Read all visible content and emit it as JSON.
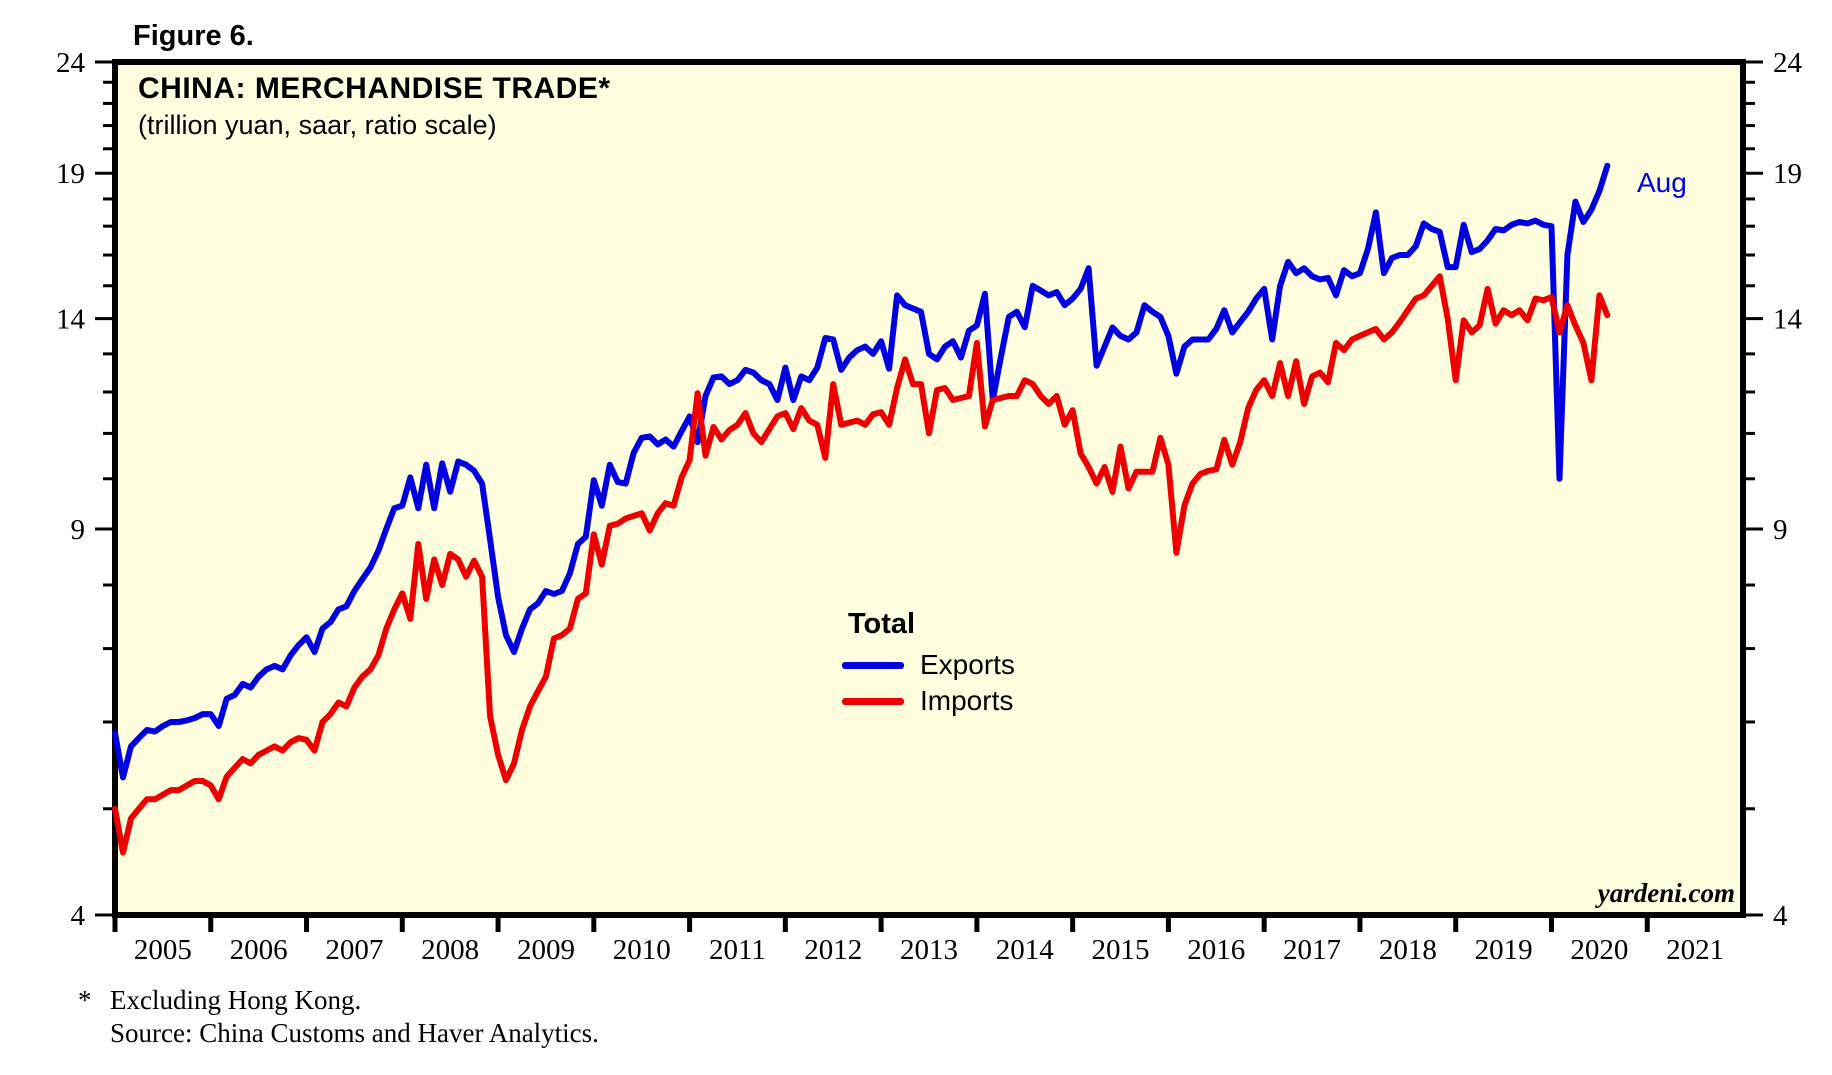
{
  "figure_label": "Figure 6.",
  "header": {
    "title": "CHINA: MERCHANDISE TRADE*",
    "subtitle": "(trillion yuan, saar, ratio scale)"
  },
  "legend": {
    "heading": "Total",
    "items": [
      {
        "label": "Exports",
        "color": "#0000e0"
      },
      {
        "label": "Imports",
        "color": "#ee0000"
      }
    ]
  },
  "annotation": {
    "text": "Aug",
    "color": "#0000e0"
  },
  "watermark": "yardeni.com",
  "footnotes": {
    "marker": "*",
    "line1": "Excluding Hong Kong.",
    "line2": "Source: China Customs and Haver Analytics."
  },
  "colors": {
    "plot_background": "#ffffe0",
    "border": "#000000",
    "exports": "#0000e0",
    "imports": "#ee0000"
  },
  "chart_data": {
    "type": "line",
    "title": "CHINA: MERCHANDISE TRADE*",
    "subtitle": "(trillion yuan, saar, ratio scale)",
    "units": "trillion yuan, saar",
    "y_scale": "log",
    "ylim": [
      4,
      24
    ],
    "yticks_labeled": [
      4,
      9,
      14,
      19,
      24
    ],
    "yticks_minor": [
      5,
      6,
      7,
      8,
      10,
      11,
      12,
      13,
      15,
      16,
      17,
      18,
      20,
      21,
      22,
      23
    ],
    "x_range": [
      2005.0,
      2022.0
    ],
    "xtick_years": [
      2005,
      2006,
      2007,
      2008,
      2009,
      2010,
      2011,
      2012,
      2013,
      2014,
      2015,
      2016,
      2017,
      2018,
      2019,
      2020,
      2021
    ],
    "frequency": "monthly",
    "x_start_year": 2005,
    "x_start_month": 1,
    "last_point_label": "Aug",
    "legend_position": "center",
    "grid": false,
    "series": [
      {
        "name": "Exports",
        "color": "#0000e0",
        "values": [
          5.86,
          5.34,
          5.7,
          5.8,
          5.9,
          5.88,
          5.95,
          6.0,
          6.0,
          6.02,
          6.05,
          6.1,
          6.1,
          5.95,
          6.3,
          6.35,
          6.5,
          6.45,
          6.6,
          6.7,
          6.75,
          6.7,
          6.9,
          7.05,
          7.17,
          6.95,
          7.3,
          7.4,
          7.6,
          7.65,
          7.9,
          8.1,
          8.3,
          8.6,
          9.0,
          9.4,
          9.45,
          10.03,
          9.4,
          10.3,
          9.4,
          10.33,
          9.73,
          10.37,
          10.3,
          10.17,
          9.9,
          8.8,
          7.8,
          7.2,
          6.95,
          7.3,
          7.6,
          7.7,
          7.9,
          7.85,
          7.9,
          8.2,
          8.72,
          8.85,
          9.97,
          9.45,
          10.3,
          9.93,
          9.9,
          10.56,
          10.9,
          10.93,
          10.75,
          10.86,
          10.7,
          11.05,
          11.4,
          10.8,
          11.9,
          12.37,
          12.4,
          12.2,
          12.3,
          12.57,
          12.5,
          12.3,
          12.2,
          11.8,
          12.63,
          11.8,
          12.4,
          12.3,
          12.63,
          13.44,
          13.4,
          12.57,
          12.9,
          13.1,
          13.2,
          13.0,
          13.35,
          12.6,
          14.7,
          14.4,
          14.3,
          14.2,
          13.0,
          12.85,
          13.2,
          13.35,
          12.9,
          13.65,
          13.8,
          14.75,
          11.8,
          12.9,
          14.05,
          14.2,
          13.75,
          15.0,
          14.85,
          14.7,
          14.8,
          14.4,
          14.6,
          14.9,
          15.56,
          12.68,
          13.2,
          13.74,
          13.5,
          13.4,
          13.6,
          14.4,
          14.2,
          14.05,
          13.5,
          12.47,
          13.2,
          13.4,
          13.4,
          13.4,
          13.7,
          14.25,
          13.6,
          13.9,
          14.2,
          14.6,
          14.9,
          13.4,
          15.0,
          15.77,
          15.4,
          15.56,
          15.3,
          15.2,
          15.25,
          14.7,
          15.5,
          15.3,
          15.4,
          16.2,
          17.5,
          15.4,
          15.9,
          16.0,
          16.0,
          16.3,
          17.1,
          16.9,
          16.8,
          15.6,
          15.6,
          17.05,
          16.1,
          16.2,
          16.5,
          16.9,
          16.85,
          17.05,
          17.15,
          17.1,
          17.2,
          17.05,
          17.0,
          10.0,
          16.0,
          17.9,
          17.15,
          17.6,
          18.3,
          19.3
        ]
      },
      {
        "name": "Imports",
        "color": "#ee0000",
        "values": [
          5.0,
          4.56,
          4.9,
          5.0,
          5.1,
          5.1,
          5.15,
          5.2,
          5.2,
          5.25,
          5.3,
          5.3,
          5.25,
          5.1,
          5.35,
          5.45,
          5.55,
          5.5,
          5.6,
          5.65,
          5.7,
          5.65,
          5.75,
          5.8,
          5.78,
          5.65,
          6.0,
          6.1,
          6.25,
          6.2,
          6.45,
          6.6,
          6.7,
          6.9,
          7.3,
          7.6,
          7.86,
          7.45,
          8.72,
          7.77,
          8.44,
          8.0,
          8.54,
          8.44,
          8.14,
          8.42,
          8.14,
          6.07,
          5.6,
          5.31,
          5.5,
          5.9,
          6.2,
          6.4,
          6.6,
          7.15,
          7.2,
          7.3,
          7.77,
          7.86,
          8.9,
          8.35,
          9.06,
          9.1,
          9.2,
          9.25,
          9.3,
          8.97,
          9.3,
          9.5,
          9.45,
          10.03,
          10.4,
          11.97,
          10.5,
          11.15,
          10.86,
          11.08,
          11.2,
          11.48,
          11.0,
          10.8,
          11.1,
          11.4,
          11.48,
          11.1,
          11.6,
          11.3,
          11.2,
          10.45,
          12.2,
          11.2,
          11.25,
          11.3,
          11.2,
          11.45,
          11.5,
          11.2,
          12.1,
          12.85,
          12.2,
          12.2,
          11.0,
          12.05,
          12.1,
          11.8,
          11.85,
          11.9,
          13.3,
          11.16,
          11.8,
          11.85,
          11.9,
          11.9,
          12.3,
          12.2,
          11.9,
          11.7,
          11.9,
          11.2,
          11.55,
          10.55,
          10.25,
          9.9,
          10.25,
          9.73,
          10.7,
          9.8,
          10.15,
          10.15,
          10.15,
          10.9,
          10.3,
          8.56,
          9.45,
          9.9,
          10.1,
          10.17,
          10.2,
          10.85,
          10.3,
          10.8,
          11.6,
          12.05,
          12.3,
          11.9,
          12.75,
          11.9,
          12.8,
          11.7,
          12.4,
          12.5,
          12.25,
          13.3,
          13.1,
          13.4,
          13.5,
          13.6,
          13.7,
          13.4,
          13.6,
          13.9,
          14.25,
          14.6,
          14.7,
          15.0,
          15.3,
          14.0,
          12.3,
          13.95,
          13.6,
          13.8,
          14.9,
          13.85,
          14.25,
          14.1,
          14.25,
          13.95,
          14.6,
          14.55,
          14.65,
          13.6,
          14.4,
          13.8,
          13.3,
          12.3,
          14.7,
          14.1
        ]
      }
    ]
  }
}
